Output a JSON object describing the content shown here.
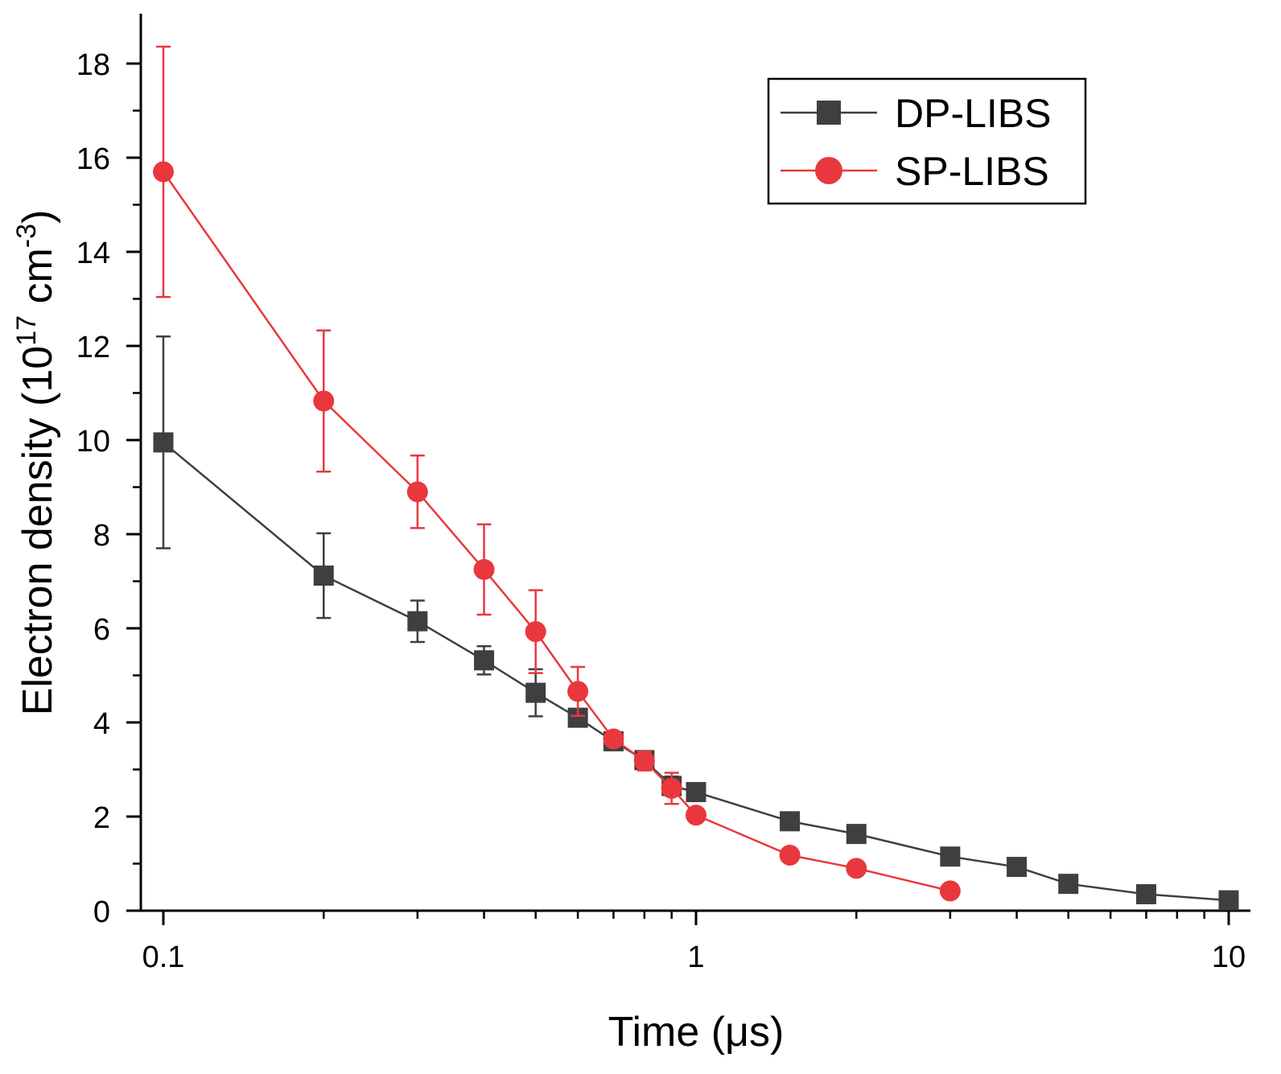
{
  "chart_data": {
    "type": "line",
    "title": "",
    "xlabel": "Time (μs)",
    "ylabel": {
      "main": "Electron density (10",
      "exp1": "17",
      "mid": " cm",
      "exp2": "-3",
      "end": ")"
    },
    "xscale": "log",
    "xlim": [
      0.09,
      11.5
    ],
    "ylim": [
      0,
      19
    ],
    "xticks": [
      {
        "value": 0.1,
        "label": "0.1"
      },
      {
        "value": 1,
        "label": "1"
      },
      {
        "value": 10,
        "label": "10"
      }
    ],
    "yticks": [
      {
        "value": 0,
        "label": "0"
      },
      {
        "value": 2,
        "label": "2"
      },
      {
        "value": 4,
        "label": "4"
      },
      {
        "value": 6,
        "label": "6"
      },
      {
        "value": 8,
        "label": "8"
      },
      {
        "value": 10,
        "label": "10"
      },
      {
        "value": 12,
        "label": "12"
      },
      {
        "value": 14,
        "label": "14"
      },
      {
        "value": 16,
        "label": "16"
      },
      {
        "value": 18,
        "label": "18"
      }
    ],
    "legend_position": "top-right",
    "series": [
      {
        "name": "DP-LIBS",
        "color": "#3f3f3f",
        "marker": "square",
        "x": [
          0.1,
          0.2,
          0.3,
          0.4,
          0.5,
          0.6,
          0.7,
          0.8,
          0.9,
          1,
          1.5,
          2,
          3,
          4,
          5,
          7,
          10
        ],
        "y": [
          9.95,
          7.12,
          6.15,
          5.32,
          4.63,
          4.1,
          3.6,
          3.2,
          2.65,
          2.52,
          1.9,
          1.63,
          1.15,
          0.93,
          0.57,
          0.35,
          0.22
        ],
        "err": [
          2.25,
          0.9,
          0.44,
          0.3,
          0.5,
          0.12,
          0.14,
          0.18,
          0.2,
          0.06,
          0.05,
          0.05,
          0.04,
          0.03,
          0.03,
          0.02,
          0.02
        ]
      },
      {
        "name": "SP-LIBS",
        "color": "#e8383d",
        "marker": "circle",
        "x": [
          0.1,
          0.2,
          0.3,
          0.4,
          0.5,
          0.6,
          0.7,
          0.8,
          0.9,
          1,
          1.5,
          2,
          3
        ],
        "y": [
          15.7,
          10.83,
          8.9,
          7.25,
          5.93,
          4.66,
          3.65,
          3.18,
          2.6,
          2.03,
          1.18,
          0.9,
          0.42
        ],
        "err": [
          2.66,
          1.5,
          0.77,
          0.96,
          0.88,
          0.52,
          0.1,
          0.2,
          0.33,
          0.05,
          0.05,
          0.04,
          0.03
        ]
      }
    ]
  }
}
